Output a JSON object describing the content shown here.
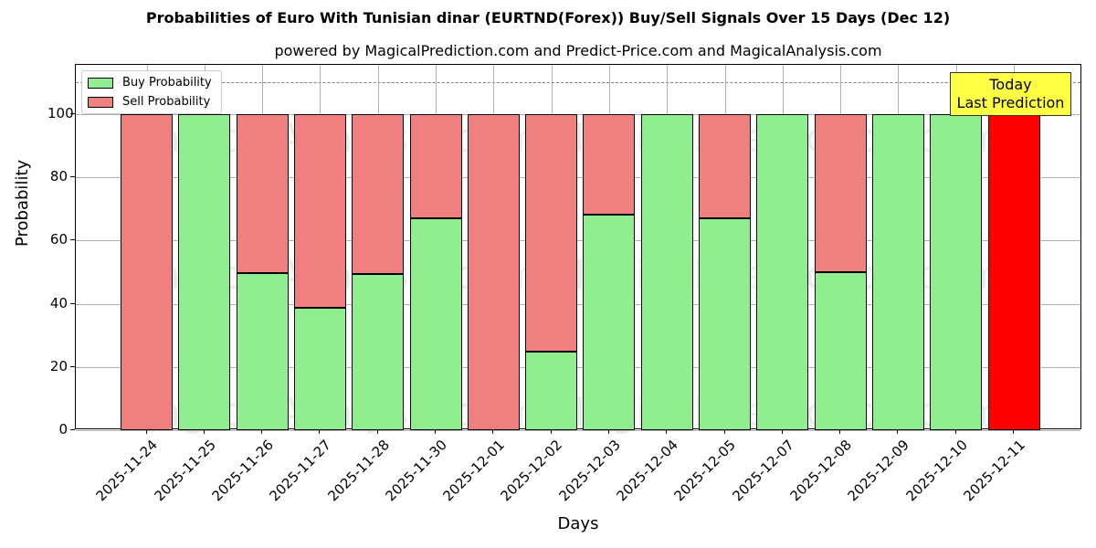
{
  "title": "Probabilities of Euro With Tunisian dinar (EURTND(Forex)) Buy/Sell Signals Over 15 Days (Dec 12)",
  "subtitle": "powered by MagicalPrediction.com and Predict-Price.com and MagicalAnalysis.com",
  "xlabel": "Days",
  "ylabel": "Probability",
  "legend": {
    "buy": "Buy Probability",
    "sell": "Sell Probability"
  },
  "annotation": {
    "line1": "Today",
    "line2": "Last Prediction"
  },
  "watermarks": [
    "MagicalAnalysis.com",
    "MagicalPrediction.com"
  ],
  "colors": {
    "buy": "#90ee90",
    "sell": "#f08080",
    "today": "#ff0000",
    "annotation_bg": "#ffff44"
  },
  "yticks": [
    "0",
    "20",
    "40",
    "60",
    "80",
    "100"
  ],
  "chart_data": {
    "type": "bar",
    "stacked": true,
    "title": "Probabilities of Euro With Tunisian dinar (EURTND(Forex)) Buy/Sell Signals Over 15 Days (Dec 12)",
    "subtitle": "powered by MagicalPrediction.com and Predict-Price.com and MagicalAnalysis.com",
    "xlabel": "Days",
    "ylabel": "Probability",
    "ylim": [
      0,
      115
    ],
    "grid": true,
    "legend_position": "upper left",
    "reference_line": 110,
    "categories": [
      "2025-11-24",
      "2025-11-25",
      "2025-11-26",
      "2025-11-27",
      "2025-11-28",
      "2025-11-30",
      "2025-12-01",
      "2025-12-02",
      "2025-12-03",
      "2025-12-04",
      "2025-12-05",
      "2025-12-07",
      "2025-12-08",
      "2025-12-09",
      "2025-12-10",
      "2025-12-11"
    ],
    "series": [
      {
        "name": "Buy Probability",
        "values": [
          0,
          100,
          49.7,
          38.7,
          49.4,
          67,
          0,
          24.9,
          68.2,
          100,
          67,
          100,
          50,
          100,
          100,
          0
        ]
      },
      {
        "name": "Sell Probability",
        "values": [
          100,
          0,
          50.3,
          61.3,
          50.6,
          33,
          100,
          75.1,
          31.8,
          0,
          33,
          0,
          50,
          0,
          0,
          100
        ]
      }
    ],
    "annotations": [
      {
        "text": "Today\nLast Prediction",
        "x": "2025-12-11"
      }
    ]
  }
}
